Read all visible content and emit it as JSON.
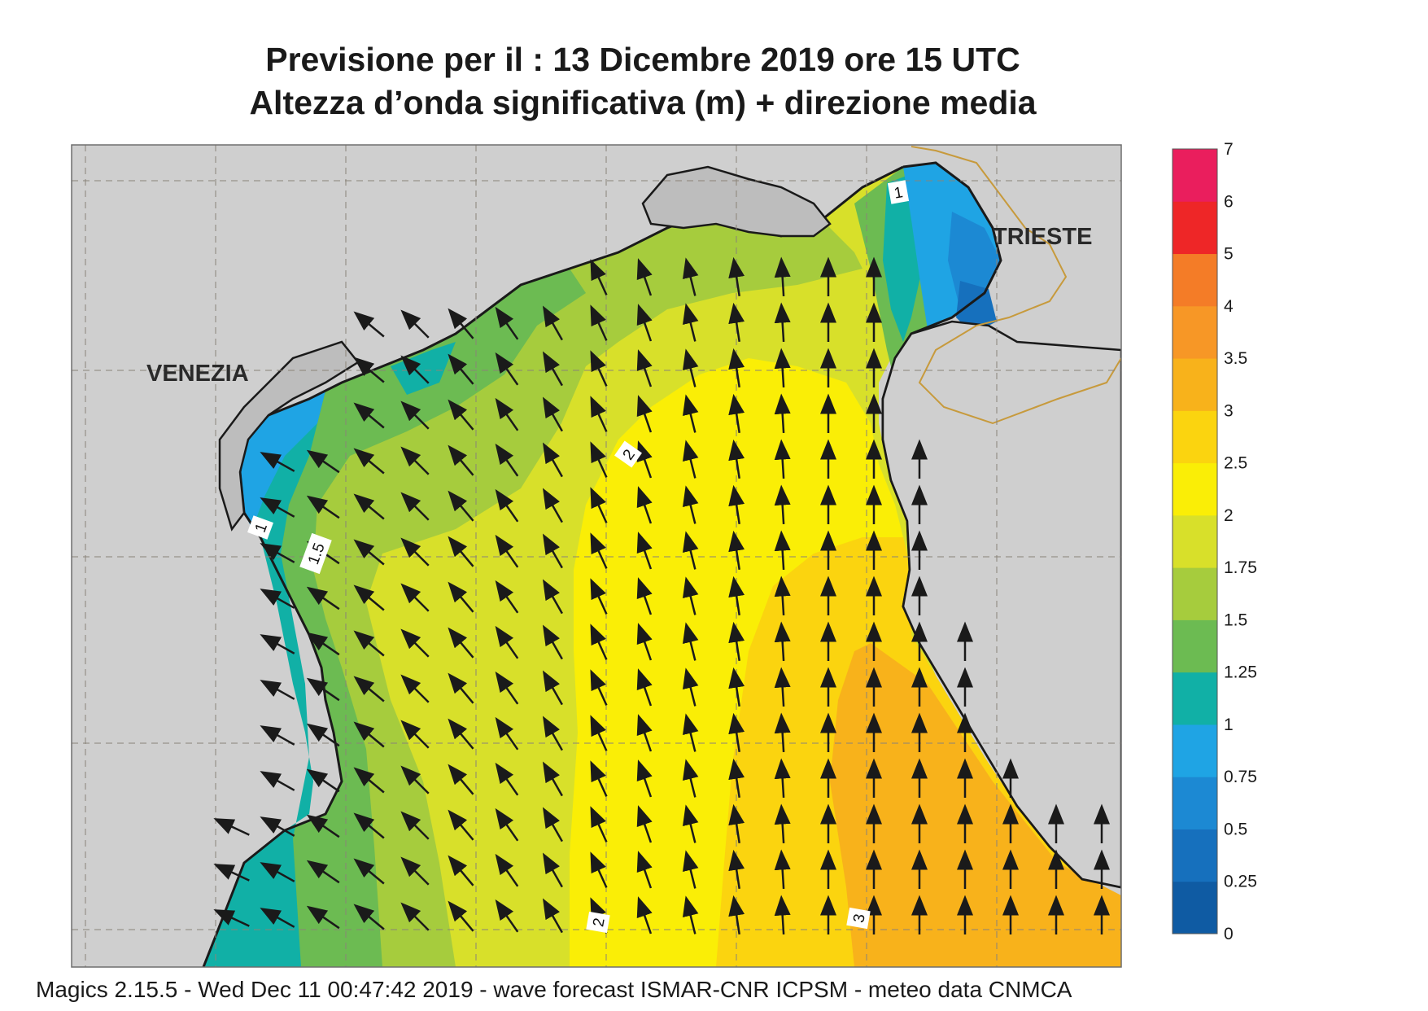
{
  "title": {
    "line1": "Previsione per il  :  13 Dicembre  2019   ore 15 UTC",
    "line2": "Altezza d’onda significativa (m) + direzione media"
  },
  "cities": {
    "venezia": "VENEZIA",
    "trieste": "TRIESTE"
  },
  "contour_labels": [
    "1",
    "1.5",
    "2",
    "1",
    "2",
    "3"
  ],
  "colorbar": {
    "levels": [
      "0",
      "0.25",
      "0.5",
      "0.75",
      "1",
      "1.25",
      "1.5",
      "1.75",
      "2",
      "2.5",
      "3",
      "3.5",
      "4",
      "5",
      "6",
      "7"
    ],
    "colors": [
      "#0f5ba3",
      "#1670bd",
      "#1c89d3",
      "#1fa4e4",
      "#11b0a6",
      "#6cbb52",
      "#a6cc3d",
      "#d8e02a",
      "#faee06",
      "#fbd40f",
      "#f8b21b",
      "#f79726",
      "#f47c27",
      "#ee2627",
      "#ea1e5d"
    ]
  },
  "footer": "Magics 2.15.5 - Wed Dec 11 00:47:42 2019 - wave forecast  ISMAR-CNR  ICPSM - meteo data   CNMCA",
  "colors": {
    "land": "#cfcfcf",
    "coast": "#1a1a1a",
    "border": "#c79a3c",
    "grid": "#8a8378"
  }
}
